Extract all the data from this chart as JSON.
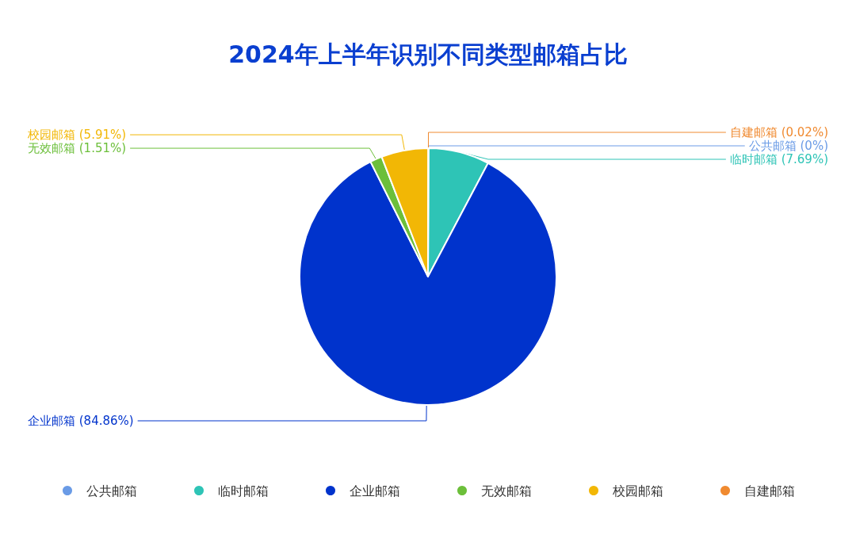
{
  "chart_data": {
    "type": "pie",
    "title": "2024年上半年识别不同类型邮箱占比",
    "categories": [
      "公共邮箱",
      "临时邮箱",
      "企业邮箱",
      "无效邮箱",
      "校园邮箱",
      "自建邮箱"
    ],
    "values": [
      0,
      7.69,
      84.86,
      1.51,
      5.91,
      0.02
    ],
    "colors": [
      "#6a9be6",
      "#2ec4b6",
      "#0033cc",
      "#6cbf3a",
      "#f2b705",
      "#f08a30"
    ],
    "value_labels": [
      "(0%)",
      "(7.69%)",
      "(84.86%)",
      "(1.51%)",
      "(5.91%)",
      "(0.02%)"
    ],
    "legend": "bottom"
  }
}
